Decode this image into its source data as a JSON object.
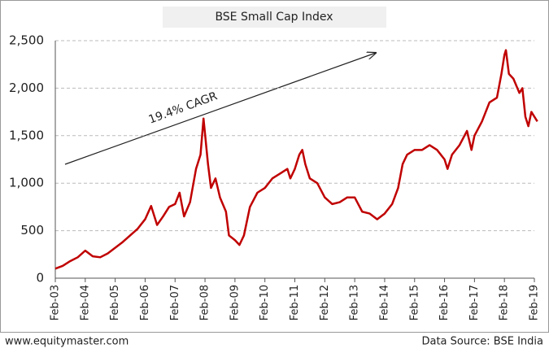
{
  "chart_data": {
    "type": "line",
    "title": "BSE Small Cap Index",
    "annotation": "19.4% CAGR",
    "footer_left": "www.equitymaster.com",
    "footer_right": "Data Source: BSE India",
    "x": [
      2003.0,
      2003.25,
      2003.5,
      2003.75,
      2004.0,
      2004.25,
      2004.5,
      2004.75,
      2005.0,
      2005.25,
      2005.5,
      2005.75,
      2006.0,
      2006.2,
      2006.4,
      2006.6,
      2006.8,
      2007.0,
      2007.15,
      2007.3,
      2007.5,
      2007.7,
      2007.85,
      2007.95,
      2008.1,
      2008.2,
      2008.35,
      2008.5,
      2008.7,
      2008.8,
      2009.0,
      2009.15,
      2009.3,
      2009.5,
      2009.75,
      2010.0,
      2010.25,
      2010.5,
      2010.75,
      2010.85,
      2011.0,
      2011.15,
      2011.25,
      2011.35,
      2011.5,
      2011.75,
      2012.0,
      2012.25,
      2012.5,
      2012.75,
      2013.0,
      2013.25,
      2013.5,
      2013.75,
      2014.0,
      2014.25,
      2014.45,
      2014.6,
      2014.75,
      2015.0,
      2015.25,
      2015.5,
      2015.75,
      2016.0,
      2016.1,
      2016.25,
      2016.5,
      2016.75,
      2016.9,
      2017.0,
      2017.25,
      2017.5,
      2017.75,
      2017.9,
      2018.0,
      2018.05,
      2018.15,
      2018.3,
      2018.5,
      2018.6,
      2018.7,
      2018.8,
      2018.9,
      2019.0,
      2019.1
    ],
    "series": [
      {
        "name": "BSE Small Cap Index",
        "color": "#c00000",
        "values": [
          100,
          130,
          180,
          220,
          290,
          230,
          220,
          260,
          320,
          380,
          450,
          520,
          620,
          760,
          560,
          650,
          750,
          780,
          900,
          650,
          800,
          1150,
          1300,
          1680,
          1200,
          950,
          1050,
          850,
          700,
          450,
          400,
          350,
          450,
          750,
          900,
          950,
          1050,
          1100,
          1150,
          1050,
          1150,
          1300,
          1350,
          1200,
          1050,
          1000,
          850,
          780,
          800,
          850,
          850,
          700,
          680,
          620,
          680,
          780,
          950,
          1200,
          1300,
          1350,
          1350,
          1400,
          1350,
          1250,
          1150,
          1300,
          1400,
          1550,
          1350,
          1500,
          1650,
          1850,
          1900,
          2150,
          2350,
          2400,
          2150,
          2100,
          1950,
          2000,
          1700,
          1600,
          1750,
          1700,
          1650
        ]
      }
    ],
    "xlim": [
      2003,
      2019
    ],
    "xticks": [
      {
        "value": 2003,
        "label": "Feb-03"
      },
      {
        "value": 2004,
        "label": "Feb-04"
      },
      {
        "value": 2005,
        "label": "Feb-05"
      },
      {
        "value": 2006,
        "label": "Feb-06"
      },
      {
        "value": 2007,
        "label": "Feb-07"
      },
      {
        "value": 2008,
        "label": "Feb-08"
      },
      {
        "value": 2009,
        "label": "Feb-09"
      },
      {
        "value": 2010,
        "label": "Feb-10"
      },
      {
        "value": 2011,
        "label": "Feb-11"
      },
      {
        "value": 2012,
        "label": "Feb-12"
      },
      {
        "value": 2013,
        "label": "Feb-13"
      },
      {
        "value": 2014,
        "label": "Feb-14"
      },
      {
        "value": 2015,
        "label": "Feb-15"
      },
      {
        "value": 2016,
        "label": "Feb-16"
      },
      {
        "value": 2017,
        "label": "Feb-17"
      },
      {
        "value": 2018,
        "label": "Feb-18"
      },
      {
        "value": 2019,
        "label": "Feb-19"
      }
    ],
    "ylim": [
      0,
      2500
    ],
    "yticks": [
      0,
      500,
      {
        "value": 1000,
        "label": "1,000"
      },
      {
        "value": 1500,
        "label": "1,500"
      },
      {
        "value": 2000,
        "label": "2,000"
      },
      {
        "value": 2500,
        "label": "2,500"
      }
    ],
    "grid": true
  }
}
